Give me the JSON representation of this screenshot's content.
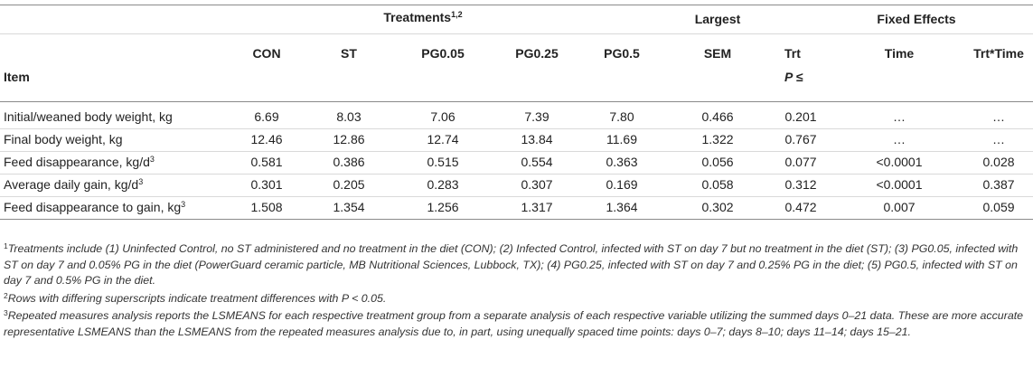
{
  "header": {
    "treatments_group": "Treatments",
    "treatments_group_sup": "1,2",
    "largest": "Largest",
    "fixed_effects": "Fixed Effects",
    "item": "Item",
    "columns": [
      "CON",
      "ST",
      "PG0.05",
      "PG0.25",
      "PG0.5",
      "SEM",
      "Trt",
      "Time",
      "Trt*Time"
    ],
    "p_label": "P ≤"
  },
  "rows": [
    {
      "item": "Initial/weaned body weight, kg",
      "sup": "",
      "values": [
        "6.69",
        "8.03",
        "7.06",
        "7.39",
        "7.80",
        "0.466",
        "0.201",
        "…",
        "…"
      ]
    },
    {
      "item": "Final body weight, kg",
      "sup": "",
      "values": [
        "12.46",
        "12.86",
        "12.74",
        "13.84",
        "11.69",
        "1.322",
        "0.767",
        "…",
        "…"
      ]
    },
    {
      "item": "Feed disappearance, kg/d",
      "sup": "3",
      "values": [
        "0.581",
        "0.386",
        "0.515",
        "0.554",
        "0.363",
        "0.056",
        "0.077",
        "<0.0001",
        "0.028"
      ]
    },
    {
      "item": "Average daily gain, kg/d",
      "sup": "3",
      "values": [
        "0.301",
        "0.205",
        "0.283",
        "0.307",
        "0.169",
        "0.058",
        "0.312",
        "<0.0001",
        "0.387"
      ]
    },
    {
      "item": "Feed disappearance to gain, kg",
      "sup": "3",
      "values": [
        "1.508",
        "1.354",
        "1.256",
        "1.317",
        "1.364",
        "0.302",
        "0.472",
        "0.007",
        "0.059"
      ]
    }
  ],
  "footnotes": [
    {
      "marker": "1",
      "text": "Treatments include (1) Uninfected Control, no ST administered and no treatment in the diet (CON); (2) Infected Control, infected with ST on day 7 but no treatment in the diet (ST); (3) PG0.05, infected with ST on day 7 and 0.05% PG in the diet (PowerGuard ceramic particle, MB Nutritional Sciences, Lubbock, TX); (4) PG0.25, infected with ST on day 7 and 0.25% PG in the diet; (5) PG0.5, infected with ST on day 7 and 0.5% PG in the diet."
    },
    {
      "marker": "2",
      "text": "Rows with differing superscripts indicate treatment differences with P < 0.05."
    },
    {
      "marker": "3",
      "text": "Repeated measures analysis reports the LSMEANS for each respective treatment group from a separate analysis of each respective variable utilizing the summed days 0–21 data. These are more accurate representative LSMEANS than the LSMEANS from the repeated measures analysis due to, in part, using unequally spaced time points: days 0–7; days 8–10; days 11–14; days 15–21."
    }
  ]
}
